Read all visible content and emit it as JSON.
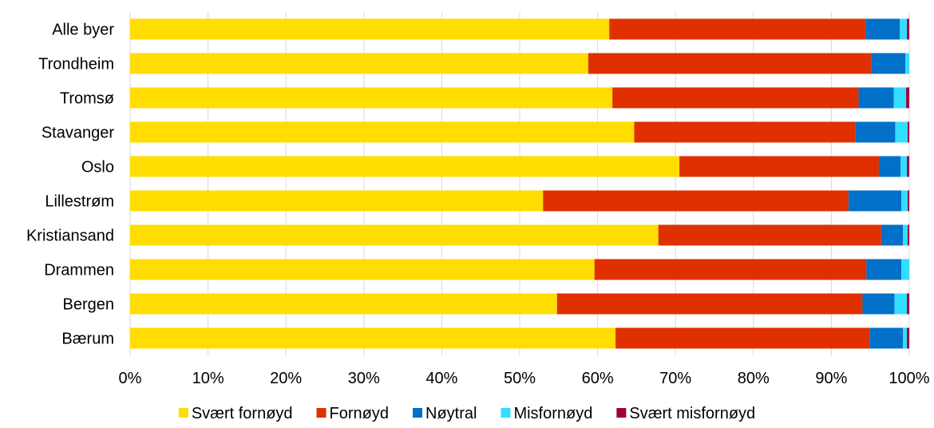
{
  "chart_data": {
    "type": "bar",
    "orientation": "horizontal",
    "stacked": true,
    "normalized": true,
    "title": "",
    "xlabel": "",
    "ylabel": "",
    "xlim": [
      0,
      100
    ],
    "x_ticks": [
      "0%",
      "10%",
      "20%",
      "30%",
      "40%",
      "50%",
      "60%",
      "70%",
      "80%",
      "90%",
      "100%"
    ],
    "grid": "vertical",
    "legend_position": "bottom",
    "categories": [
      "Alle byer",
      "Trondheim",
      "Tromsø",
      "Stavanger",
      "Oslo",
      "Lillestrøm",
      "Kristiansand",
      "Drammen",
      "Bergen",
      "Bærum"
    ],
    "series": [
      {
        "name": "Svært fornøyd",
        "color": "#FFDD00",
        "values": [
          61.5,
          58.8,
          61.9,
          64.7,
          70.5,
          53.0,
          67.8,
          59.6,
          54.8,
          62.3
        ]
      },
      {
        "name": "Fornøyd",
        "color": "#E03000",
        "values": [
          32.9,
          36.3,
          31.6,
          28.4,
          25.6,
          39.2,
          28.6,
          34.9,
          39.2,
          32.6
        ]
      },
      {
        "name": "Nøytral",
        "color": "#0070C8",
        "values": [
          4.4,
          4.4,
          4.5,
          5.1,
          2.8,
          6.8,
          2.8,
          4.5,
          4.1,
          4.3
        ]
      },
      {
        "name": "Misfornøyd",
        "color": "#33DDFF",
        "values": [
          0.9,
          0.5,
          1.6,
          1.6,
          0.8,
          0.8,
          0.6,
          1.0,
          1.6,
          0.5
        ]
      },
      {
        "name": "Svært misfornøyd",
        "color": "#A0003A",
        "values": [
          0.3,
          0.0,
          0.4,
          0.2,
          0.3,
          0.2,
          0.2,
          0.0,
          0.3,
          0.3
        ]
      }
    ]
  }
}
